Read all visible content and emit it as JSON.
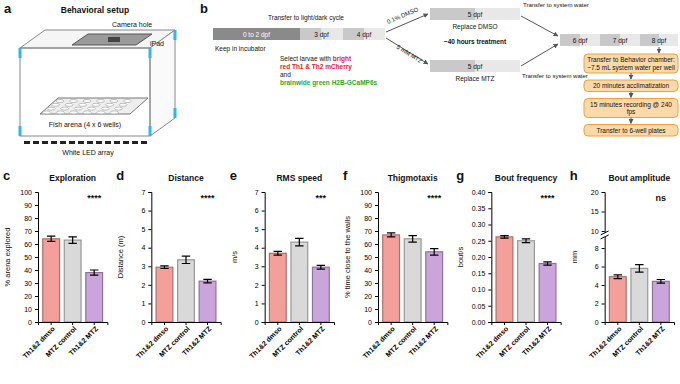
{
  "setup_panel": {
    "label": "a",
    "title": "Behavioral setup",
    "camera_hole": "Camera hole",
    "ipad": "iPad",
    "arena": "Fish arena (4 x 6 wells)",
    "led": "White LED array"
  },
  "timeline_panel": {
    "label": "b",
    "light_dark": "Transfer to light/dark cycle",
    "incubator": "Keep in incubator",
    "day_0_2": "0 to 2 dpf",
    "day_3": "3 dpf",
    "day_4": "4 dpf",
    "day_5_dmso": "5 dpf",
    "day_5_mtz": "5 dpf",
    "day_6": "6 dpf",
    "day_7": "7 dpf",
    "day_8": "8 dpf",
    "dmso": "0.1% DMSO",
    "mtz": "5 mM MTZ",
    "replace_dmso": "Replace DMSO",
    "replace_mtz": "Replace MTZ",
    "treatment": "~40 hours treatment",
    "transfer_water_top": "Transfer to system water",
    "transfer_water_bottom": "Transfer to system water",
    "selection": [
      [
        {
          "text": "Select larvae with ",
          "color": "#111111"
        },
        {
          "text": "bright",
          "color": "#e0202a"
        }
      ],
      [
        {
          "text": "red Th1 & Th2 mCherry",
          "color": "#e0202a"
        }
      ],
      [
        {
          "text": "and",
          "color": "#111111"
        }
      ],
      [
        {
          "text": "brainwide green H2B-GCaMP6s",
          "color": "#1faa2e"
        }
      ]
    ],
    "steps": [
      "Transfer to Behavior chamber: ~7.5 mL system water per well",
      "20 minutes acclimatization",
      "15 minutes recording @ 240 fps",
      "Transfer to 6-well plates"
    ]
  },
  "chart_data": [
    {
      "type": "bar",
      "panel": "c",
      "title": "Exploration",
      "y_label": "% arena explored",
      "categories": [
        "Th1&2 dmso",
        "MTZ control",
        "Th1&2 MTZ"
      ],
      "values": [
        64,
        63,
        38
      ],
      "errors": [
        2.0,
        2.5,
        2.0
      ],
      "colors": [
        "#f4a09a",
        "#d9d9d9",
        "#caa5dc"
      ],
      "ylim": [
        0,
        100
      ],
      "yticks": [
        0,
        10,
        20,
        30,
        40,
        50,
        60,
        70,
        80,
        90,
        100
      ],
      "significance": "****"
    },
    {
      "type": "bar",
      "panel": "d",
      "title": "Distance",
      "y_label": "Distance (m)",
      "categories": [
        "Th1&2 dmso",
        "MTZ control",
        "Th1&2 MTZ"
      ],
      "values": [
        2.95,
        3.35,
        2.2
      ],
      "errors": [
        0.07,
        0.2,
        0.09
      ],
      "colors": [
        "#f4a09a",
        "#d9d9d9",
        "#caa5dc"
      ],
      "ylim": [
        0,
        7
      ],
      "yticks": [
        0,
        1,
        2,
        3,
        4,
        5,
        6,
        7
      ],
      "significance": "****"
    },
    {
      "type": "bar",
      "panel": "e",
      "title": "RMS speed",
      "y_label": "m/s",
      "categories": [
        "Th1&2 dmso",
        "MTZ control",
        "Th1&2 MTZ"
      ],
      "values": [
        3.7,
        4.3,
        2.95
      ],
      "errors": [
        0.1,
        0.2,
        0.1
      ],
      "colors": [
        "#f4a09a",
        "#d9d9d9",
        "#caa5dc"
      ],
      "ylim": [
        0,
        7
      ],
      "yticks": [
        0,
        1,
        2,
        3,
        4,
        5,
        6,
        7
      ],
      "significance": "***"
    },
    {
      "type": "bar",
      "panel": "f",
      "title": "Thigmotaxis",
      "y_label": "% time close to the walls",
      "categories": [
        "Th1&2 dmso",
        "MTZ control",
        "Th1&2 MTZ"
      ],
      "values": [
        67,
        64,
        54
      ],
      "errors": [
        1.5,
        2.5,
        2.5
      ],
      "colors": [
        "#f4a09a",
        "#d9d9d9",
        "#caa5dc"
      ],
      "ylim": [
        0,
        100
      ],
      "yticks": [
        0,
        10,
        20,
        30,
        40,
        50,
        60,
        70,
        80,
        90,
        100
      ],
      "significance": "****"
    },
    {
      "type": "bar",
      "panel": "g",
      "title": "Bout frequency",
      "y_label": "bout/s",
      "categories": [
        "Th1&2 dmso",
        "MTZ control",
        "Th1&2 MTZ"
      ],
      "values": [
        0.262,
        0.25,
        0.18
      ],
      "errors": [
        0.004,
        0.006,
        0.005
      ],
      "colors": [
        "#f4a09a",
        "#d9d9d9",
        "#caa5dc"
      ],
      "ylim": [
        0,
        0.4
      ],
      "yticks": [
        {
          "value": 0,
          "label": "0.00"
        },
        0.05,
        {
          "value": 0.1,
          "label": "0.10"
        },
        0.15,
        {
          "value": 0.2,
          "label": "0.20"
        },
        0.25,
        {
          "value": 0.3,
          "label": "0.30"
        },
        0.35,
        {
          "value": 0.4,
          "label": "0.40"
        }
      ],
      "significance": "****"
    },
    {
      "type": "bar",
      "panel": "h",
      "title": "Bout amplitude",
      "y_label": "mm",
      "categories": [
        "Th1&2 dmso",
        "MTZ control",
        "Th1&2 MTZ"
      ],
      "values": [
        4.9,
        5.8,
        4.4
      ],
      "errors": [
        0.2,
        0.4,
        0.2
      ],
      "colors": [
        "#f4a09a",
        "#d9d9d9",
        "#caa5dc"
      ],
      "ylim": [
        0,
        20
      ],
      "yticks": [
        0,
        2,
        4,
        6,
        8,
        10,
        15,
        20
      ],
      "axis_break": [
        9,
        10
      ],
      "significance": "ns"
    }
  ]
}
